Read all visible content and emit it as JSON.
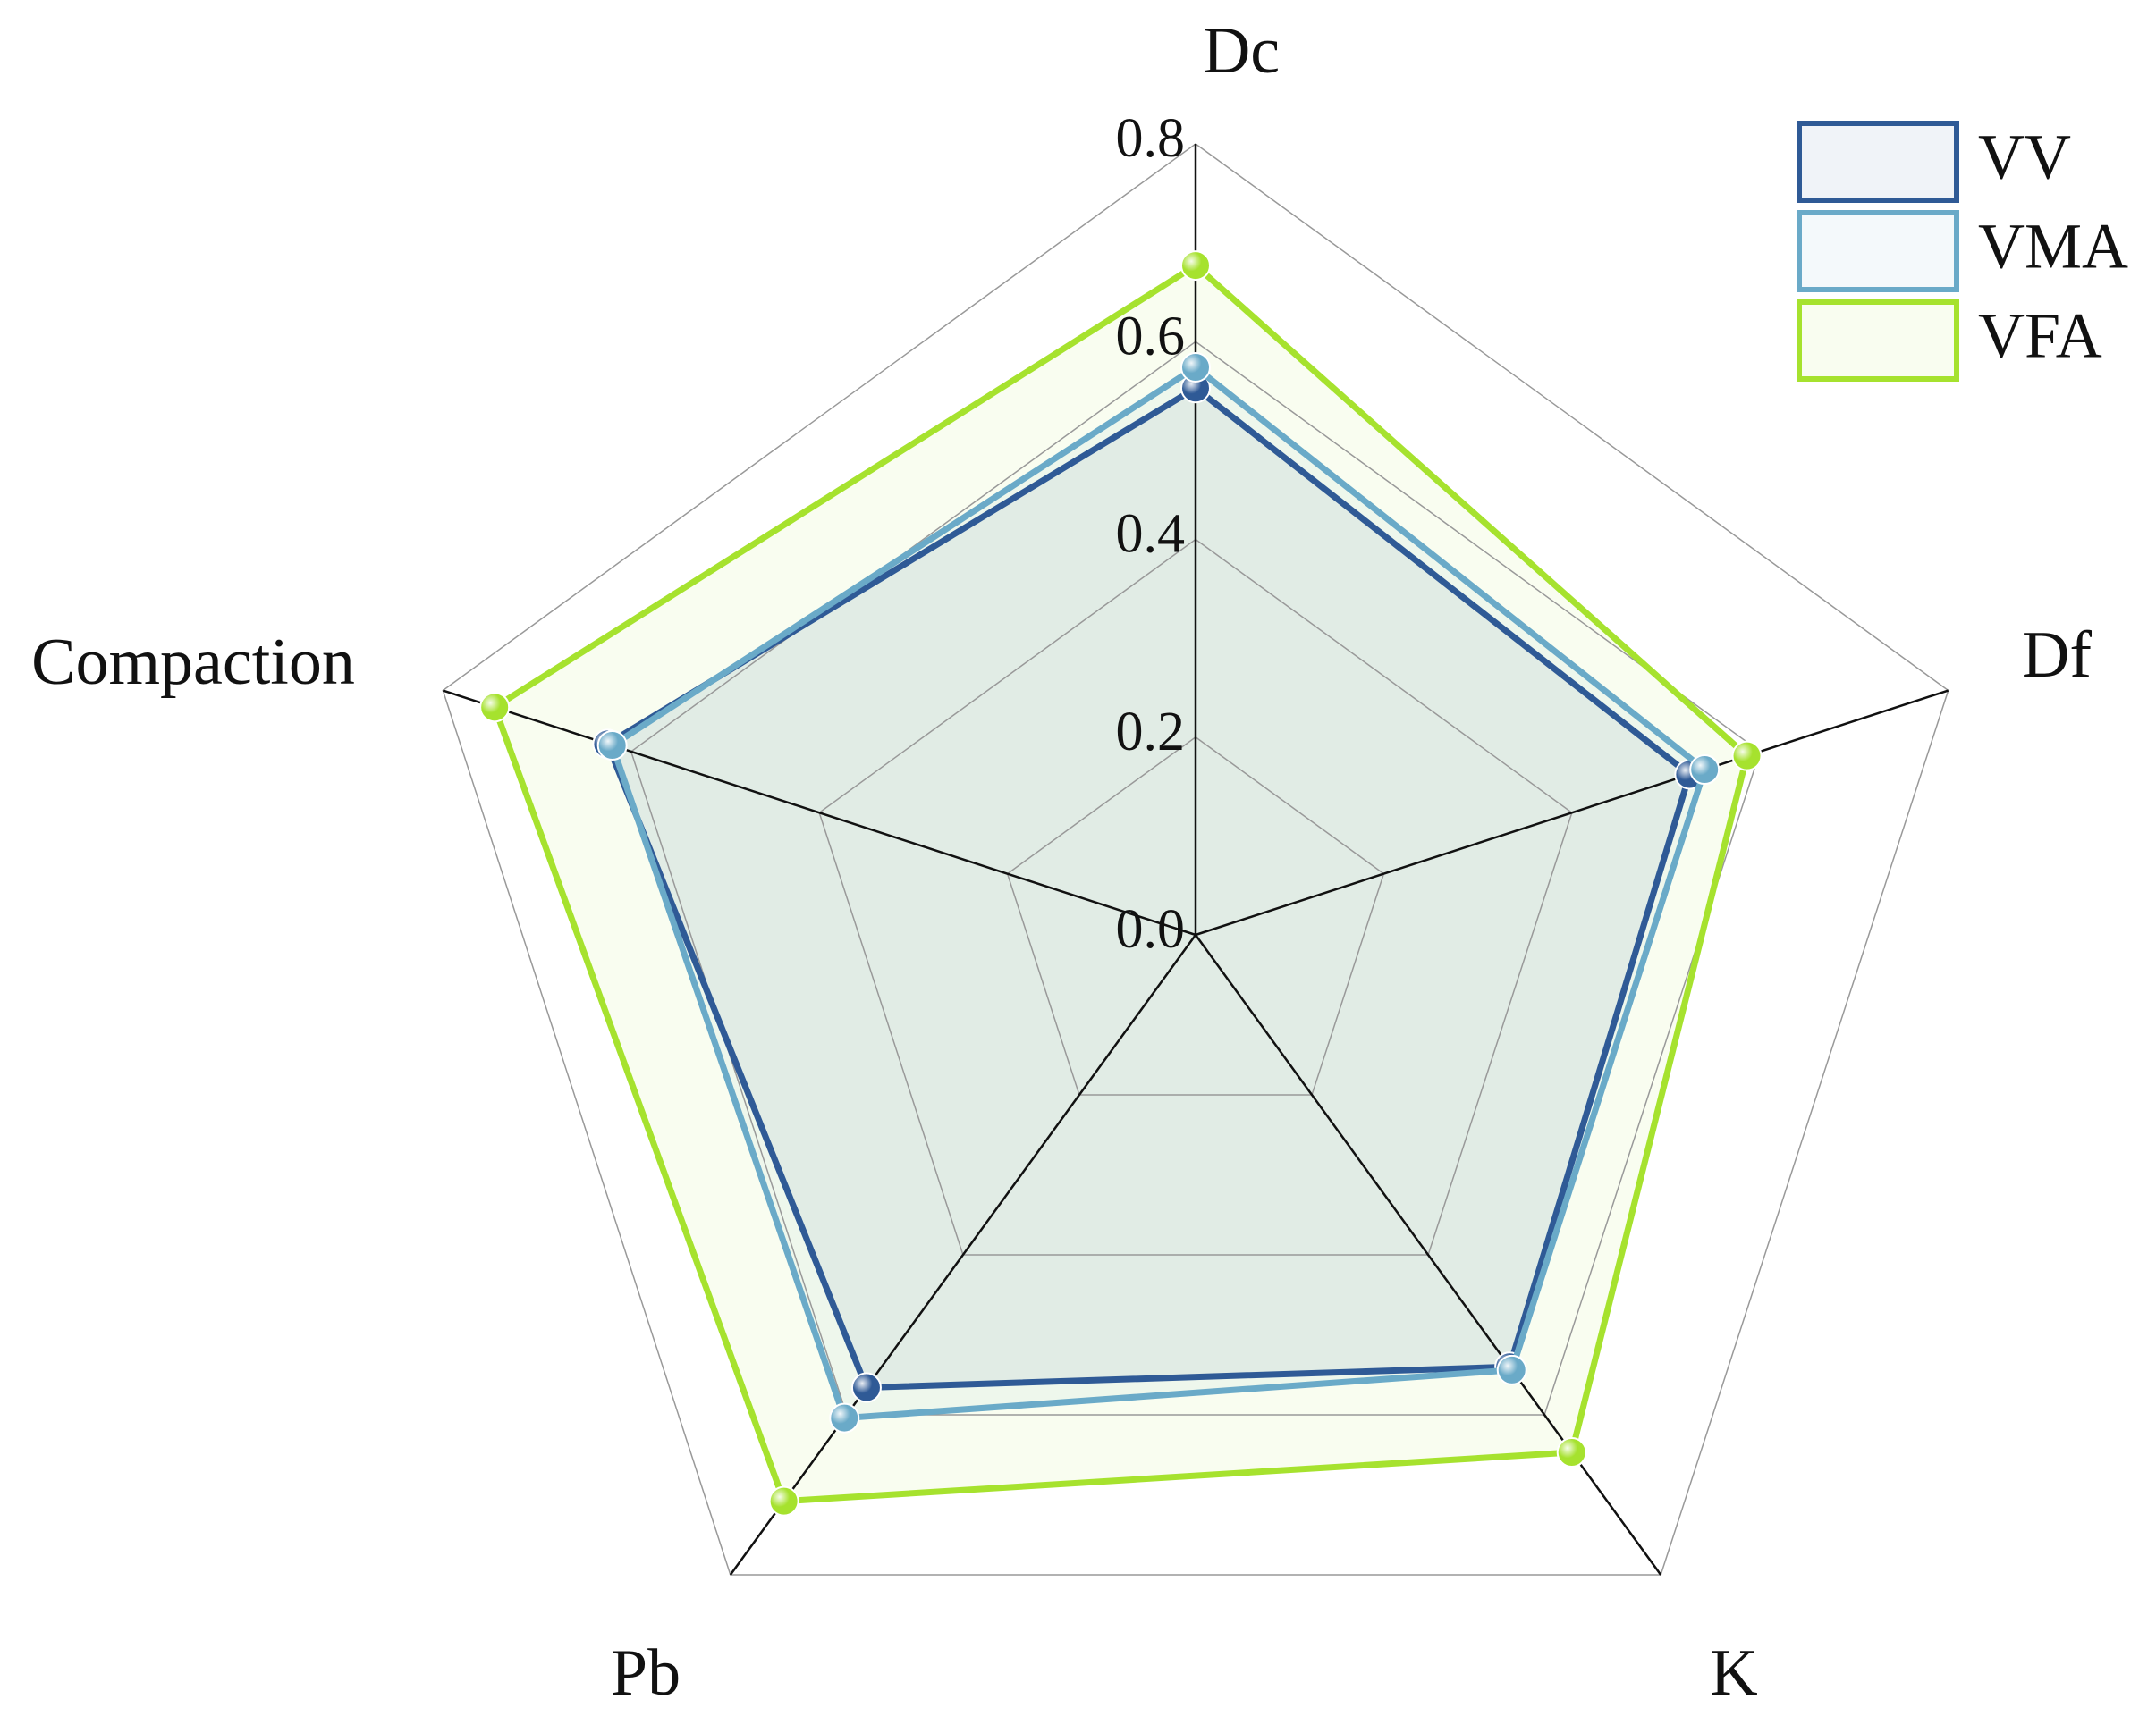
{
  "chart_data": {
    "type": "radar",
    "categories": [
      "Dc",
      "Df",
      "K",
      "Pb",
      "Compaction"
    ],
    "series": [
      {
        "name": "VV",
        "color": "#2f5a96",
        "values": [
          0.553,
          0.525,
          0.54,
          0.566,
          0.625
        ]
      },
      {
        "name": "VMA",
        "color": "#6aaac8",
        "values": [
          0.574,
          0.541,
          0.544,
          0.604,
          0.62
        ]
      },
      {
        "name": "VFA",
        "color": "#a6e22e",
        "values": [
          0.677,
          0.586,
          0.647,
          0.708,
          0.745
        ]
      }
    ],
    "ylim": [
      0,
      0.8
    ],
    "yticks": [
      {
        "value": 0,
        "label": "0.0"
      },
      {
        "value": 0.2,
        "label": "0.2"
      },
      {
        "value": 0.4,
        "label": "0.4"
      },
      {
        "value": 0.6,
        "label": "0.6"
      },
      {
        "value": 0.8,
        "label": "0.8"
      }
    ],
    "grid": true,
    "legend": "top-right"
  }
}
